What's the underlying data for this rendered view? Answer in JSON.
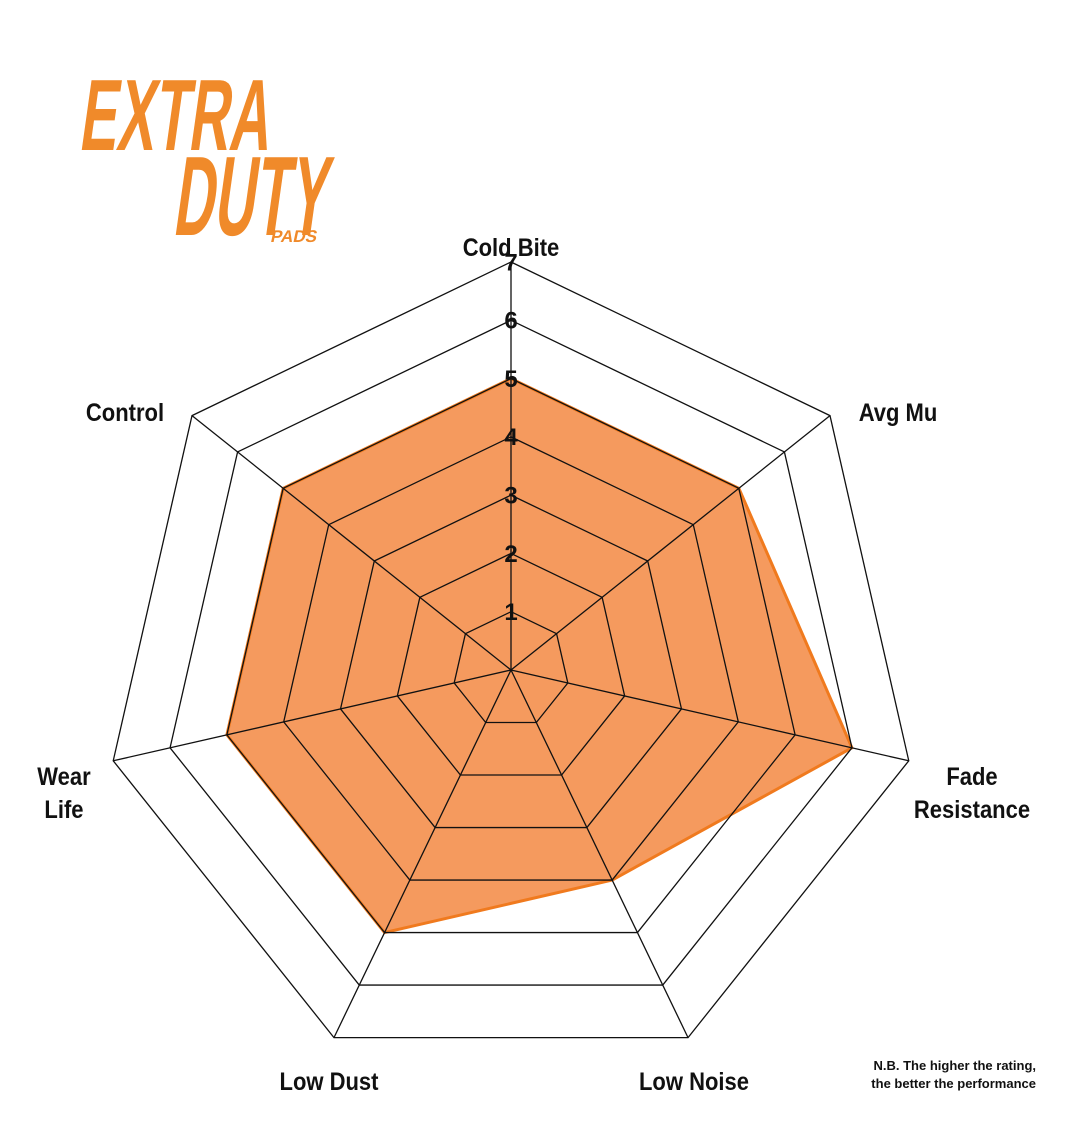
{
  "logo": {
    "line1": "EXTRA",
    "line2": "DUTY",
    "line3": "PADS"
  },
  "chart_data": {
    "type": "radar",
    "categories": [
      "Cold Bite",
      "Avg Mu",
      "Fade Resistance",
      "Low Noise",
      "Low Dust",
      "Wear Life",
      "Control"
    ],
    "values": [
      5,
      5,
      6,
      4,
      5,
      5,
      5
    ],
    "fill": "#f59a5e",
    "stroke": "#f07a1e",
    "rlim": [
      0,
      7
    ],
    "rticks": [
      1,
      2,
      3,
      4,
      5,
      6,
      7
    ]
  },
  "note": {
    "line1": "N.B. The higher the rating,",
    "line2": "the better the performance"
  }
}
